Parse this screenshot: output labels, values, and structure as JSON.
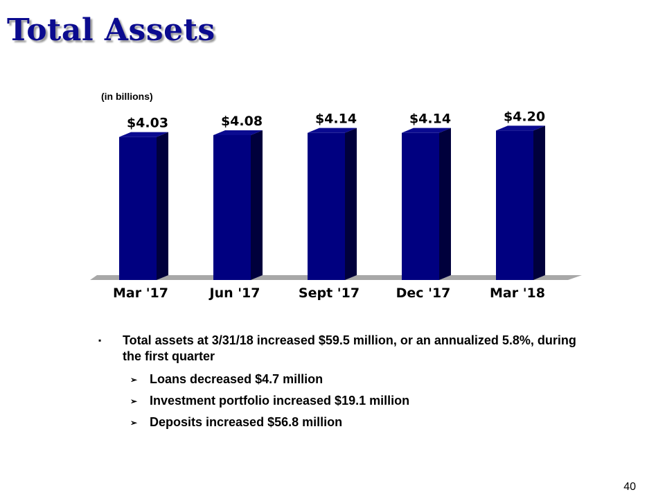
{
  "slide": {
    "title": "Total Assets",
    "units_note": "(in billions)",
    "page_number": "40"
  },
  "chart_data": {
    "type": "bar",
    "categories": [
      "Mar '17",
      "Jun '17",
      "Sept '17",
      "Dec '17",
      "Mar '18"
    ],
    "values": [
      4.03,
      4.08,
      4.14,
      4.14,
      4.2
    ],
    "data_labels": [
      "$4.03",
      "$4.08",
      "$4.14",
      "$4.14",
      "$4.20"
    ],
    "title": "",
    "xlabel": "",
    "ylabel": "",
    "grid": false,
    "colors": {
      "bar_front": "#000080",
      "bar_side": "#00003c",
      "bar_top": "#0a0a90",
      "floor": "#a8a8a8"
    }
  },
  "bullets": {
    "main": {
      "marker": "▪",
      "text": "Total assets at 3/31/18 increased $59.5 million,  or an annualized 5.8%,  during the first quarter"
    },
    "sub": [
      {
        "marker": "➢",
        "text": "Loans decreased $4.7 million"
      },
      {
        "marker": "➢",
        "text": "Investment portfolio increased $19.1 million"
      },
      {
        "marker": "➢",
        "text": "Deposits increased $56.8 million"
      }
    ]
  }
}
